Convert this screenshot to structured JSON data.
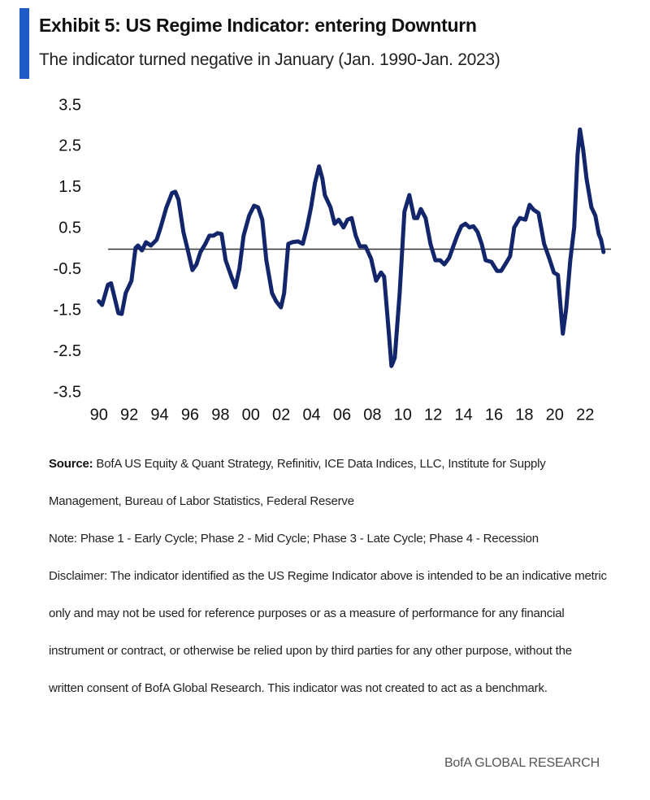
{
  "title": "Exhibit 5: US Regime Indicator: entering Downturn",
  "subtitle": "The indicator turned negative in January (Jan. 1990-Jan. 2023)",
  "chart_data": {
    "type": "line",
    "x": [
      1990.0,
      1990.21,
      1990.59,
      1990.8,
      1991.02,
      1991.28,
      1991.5,
      1991.76,
      1992.14,
      1992.41,
      1992.57,
      1992.83,
      1993.1,
      1993.42,
      1993.8,
      1994.06,
      1994.44,
      1994.81,
      1995.03,
      1995.24,
      1995.56,
      1995.88,
      1996.15,
      1996.42,
      1996.68,
      1997.01,
      1997.27,
      1997.54,
      1997.81,
      1998.07,
      1998.34,
      1998.72,
      1998.98,
      1999.25,
      1999.52,
      1999.89,
      2000.21,
      2000.48,
      2000.75,
      2001.02,
      2001.39,
      2001.66,
      2001.98,
      2002.19,
      2002.46,
      2002.73,
      2003.1,
      2003.42,
      2003.69,
      2003.96,
      2004.22,
      2004.49,
      2004.71,
      2004.87,
      2005.24,
      2005.51,
      2005.78,
      2006.1,
      2006.36,
      2006.63,
      2006.9,
      2007.17,
      2007.54,
      2007.91,
      2008.24,
      2008.56,
      2008.77,
      2009.04,
      2009.25,
      2009.47,
      2009.79,
      2010.11,
      2010.43,
      2010.75,
      2010.96,
      2011.18,
      2011.5,
      2011.82,
      2012.14,
      2012.46,
      2012.73,
      2013.05,
      2013.32,
      2013.58,
      2013.85,
      2014.12,
      2014.39,
      2014.65,
      2014.92,
      2015.19,
      2015.45,
      2015.83,
      2016.2,
      2016.47,
      2016.74,
      2017.06,
      2017.33,
      2017.7,
      2018.07,
      2018.34,
      2018.61,
      2018.93,
      2019.3,
      2019.68,
      2019.94,
      2020.21,
      2020.53,
      2020.75,
      2021.02,
      2021.28,
      2021.5,
      2021.66,
      2021.87,
      2022.09,
      2022.41,
      2022.67,
      2022.89,
      2023.05,
      2023.21
    ],
    "series": [
      {
        "name": "US Regime Indicator",
        "color": "#13266b",
        "values": [
          -1.27,
          -1.36,
          -0.87,
          -0.83,
          -1.16,
          -1.56,
          -1.58,
          -1.07,
          -0.77,
          0.03,
          0.09,
          -0.03,
          0.17,
          0.09,
          0.23,
          0.53,
          1.02,
          1.37,
          1.4,
          1.21,
          0.42,
          -0.07,
          -0.51,
          -0.37,
          -0.07,
          0.13,
          0.33,
          0.33,
          0.39,
          0.37,
          -0.27,
          -0.67,
          -0.93,
          -0.47,
          0.33,
          0.82,
          1.06,
          1.02,
          0.72,
          -0.27,
          -1.07,
          -1.27,
          -1.42,
          -1.07,
          0.13,
          0.17,
          0.19,
          0.13,
          0.53,
          1.02,
          1.62,
          2.02,
          1.72,
          1.32,
          1.02,
          0.62,
          0.72,
          0.53,
          0.72,
          0.76,
          0.33,
          0.07,
          0.07,
          -0.23,
          -0.77,
          -0.57,
          -0.67,
          -1.86,
          -2.85,
          -2.65,
          -1.07,
          0.92,
          1.32,
          0.76,
          0.76,
          0.98,
          0.76,
          0.13,
          -0.27,
          -0.27,
          -0.37,
          -0.21,
          0.07,
          0.33,
          0.56,
          0.62,
          0.53,
          0.56,
          0.42,
          0.13,
          -0.27,
          -0.31,
          -0.53,
          -0.53,
          -0.37,
          -0.17,
          0.53,
          0.76,
          0.72,
          1.08,
          0.96,
          0.88,
          0.13,
          -0.27,
          -0.57,
          -0.63,
          -2.06,
          -1.46,
          -0.27,
          0.53,
          2.32,
          2.92,
          2.42,
          1.72,
          1.02,
          0.82,
          0.37,
          0.23,
          -0.07
        ]
      }
    ],
    "xlim": [
      1989.8,
      2023.7
    ],
    "xticks": [
      {
        "value": 1990,
        "label": "90"
      },
      {
        "value": 1992,
        "label": "92"
      },
      {
        "value": 1994,
        "label": "94"
      },
      {
        "value": 1996,
        "label": "96"
      },
      {
        "value": 1998,
        "label": "98"
      },
      {
        "value": 2000,
        "label": "00"
      },
      {
        "value": 2002,
        "label": "02"
      },
      {
        "value": 2004,
        "label": "04"
      },
      {
        "value": 2006,
        "label": "06"
      },
      {
        "value": 2008,
        "label": "08"
      },
      {
        "value": 2010,
        "label": "10"
      },
      {
        "value": 2012,
        "label": "12"
      },
      {
        "value": 2014,
        "label": "14"
      },
      {
        "value": 2016,
        "label": "16"
      },
      {
        "value": 2018,
        "label": "18"
      },
      {
        "value": 2020,
        "label": "20"
      },
      {
        "value": 2022,
        "label": "22"
      }
    ],
    "ylim": [
      -3.5,
      3.5
    ],
    "yticks": [
      3.5,
      2.5,
      1.5,
      0.5,
      -0.5,
      -1.5,
      -2.5,
      -3.5
    ],
    "reference_line": 0,
    "grid": false
  },
  "source_label": "Source:",
  "source": "BofA US Equity & Quant Strategy, Refinitiv, ICE Data Indices, LLC, Institute for Supply Management, Bureau of Labor Statistics, Federal Reserve",
  "note": "Note: Phase 1 - Early Cycle; Phase 2 - Mid Cycle; Phase 3 - Late Cycle; Phase 4 - Recession",
  "disclaimer": "Disclaimer: The indicator identified as the US Regime Indicator above is intended to be an indicative metric only and may not be used for reference purposes or as a measure of performance for any financial instrument or contract, or otherwise be relied upon by third parties for any other purpose, without the written consent of BofA Global Research. This indicator was not created to act as a benchmark.",
  "brand": "BofA GLOBAL RESEARCH"
}
